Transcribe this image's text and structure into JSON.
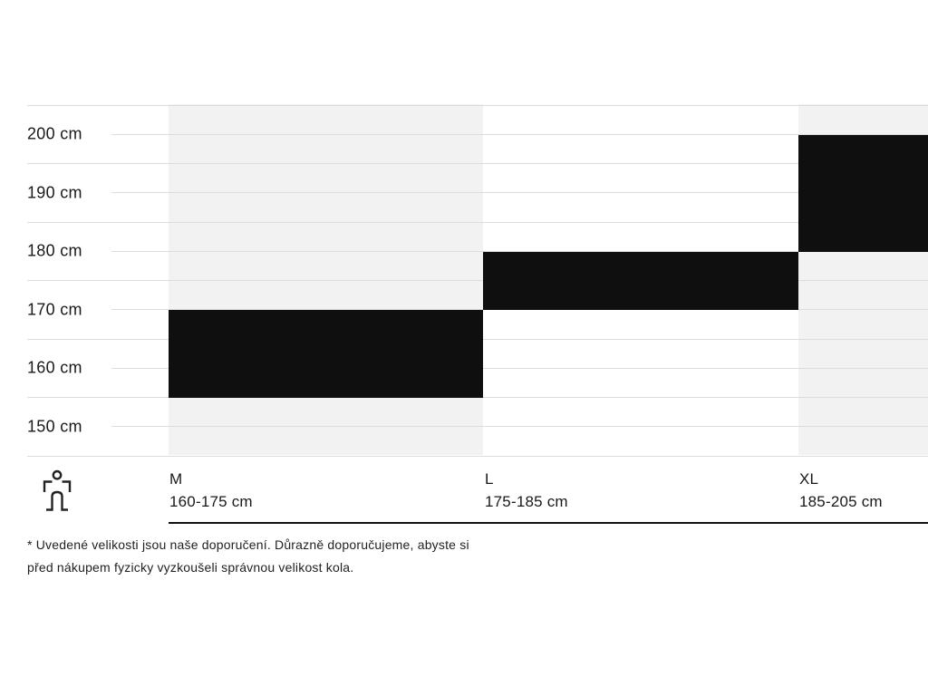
{
  "chart_data": {
    "type": "bar",
    "subtype": "vertical-range-columns",
    "title": "",
    "xlabel": "",
    "ylabel": "",
    "unit": "cm",
    "categories": [
      "M",
      "L",
      "XL"
    ],
    "series": [
      {
        "name": "M",
        "range_label": "160-175 cm",
        "min": 160,
        "max": 175
      },
      {
        "name": "L",
        "range_label": "175-185 cm",
        "min": 175,
        "max": 185
      },
      {
        "name": "XL",
        "range_label": "185-205 cm",
        "min": 185,
        "max": 205
      }
    ],
    "yticks": [
      200,
      190,
      180,
      170,
      160,
      150
    ],
    "ytick_labels": [
      "200 cm",
      "190 cm",
      "180 cm",
      "170 cm",
      "160 cm",
      "150 cm"
    ],
    "grid": true,
    "grid_step_cm": 5,
    "legend_position": "none"
  },
  "colors": {
    "bar": "#0f0f0f",
    "alt_column_bg": "#f2f2f2",
    "gridline": "#dcdcdc",
    "text": "#191919",
    "axis_line": "#111111"
  },
  "icons": {
    "person": "person-icon"
  },
  "footnote": {
    "line1": "* Uvedené velikosti jsou naše doporučení. Důrazně doporučujeme, abyste si",
    "line2": "před nákupem fyzicky vyzkoušeli správnou velikost kola."
  }
}
